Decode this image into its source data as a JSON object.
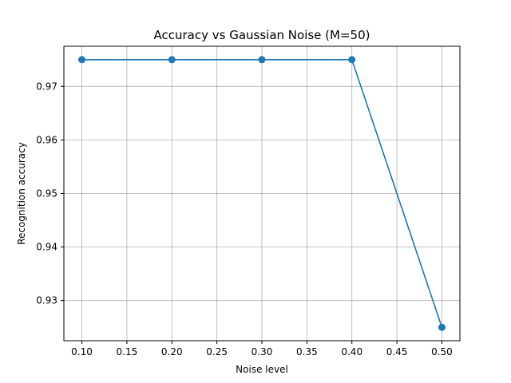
{
  "chart_data": {
    "type": "line",
    "title": "Accuracy vs Gaussian Noise (M=50)",
    "xlabel": "Noise level",
    "ylabel": "Recognition accuracy",
    "x": [
      0.1,
      0.2,
      0.3,
      0.4,
      0.5
    ],
    "series": [
      {
        "values": [
          0.975,
          0.975,
          0.975,
          0.975,
          0.925
        ],
        "color": "#1f77b4",
        "marker": "circle"
      }
    ],
    "xlim": [
      0.08,
      0.52
    ],
    "ylim": [
      0.9225,
      0.9775
    ],
    "xticks": [
      0.1,
      0.15,
      0.2,
      0.25,
      0.3,
      0.35,
      0.4,
      0.45,
      0.5
    ],
    "xtick_labels": [
      "0.10",
      "0.15",
      "0.20",
      "0.25",
      "0.30",
      "0.35",
      "0.40",
      "0.45",
      "0.50"
    ],
    "yticks": [
      0.93,
      0.94,
      0.95,
      0.96,
      0.97
    ],
    "ytick_labels": [
      "0.93",
      "0.94",
      "0.95",
      "0.96",
      "0.97"
    ],
    "grid": true
  }
}
